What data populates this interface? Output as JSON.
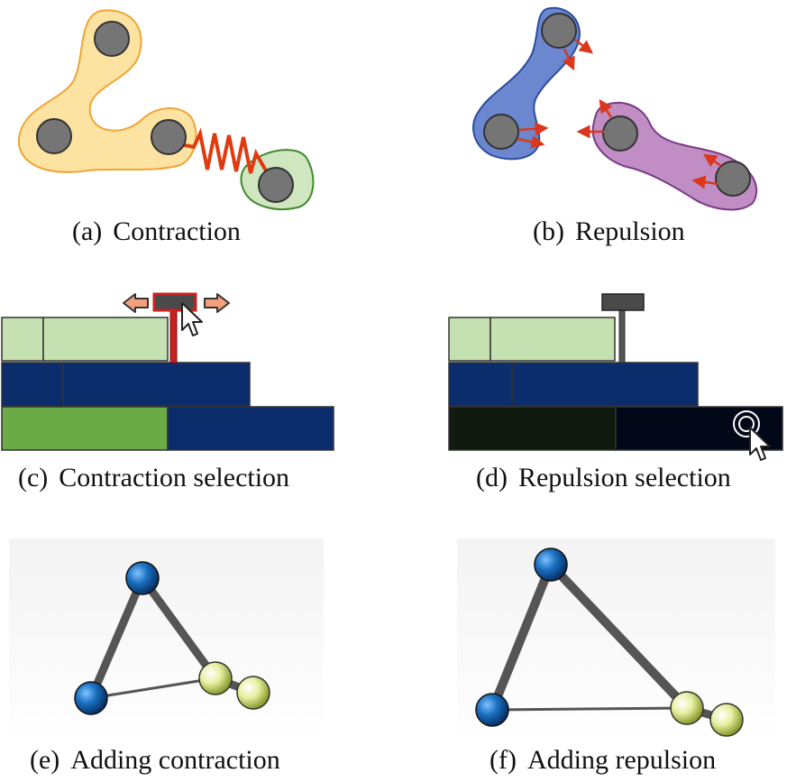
{
  "figure": {
    "panels": [
      {
        "id": "a",
        "label": "(a)",
        "caption": "Contraction"
      },
      {
        "id": "b",
        "label": "(b)",
        "caption": "Repulsion"
      },
      {
        "id": "c",
        "label": "(c)",
        "caption": "Contraction selection"
      },
      {
        "id": "d",
        "label": "(d)",
        "caption": "Repulsion selection"
      },
      {
        "id": "e",
        "label": "(e)",
        "caption": "Adding contraction"
      },
      {
        "id": "f",
        "label": "(f)",
        "caption": "Adding repulsion"
      }
    ]
  },
  "colors": {
    "node": "#757575",
    "cluster_orange": "#fde3a1",
    "cluster_green": "#cfe6c0",
    "cluster_blue": "#6b87cf",
    "cluster_purple": "#c08ec4",
    "spring": "#e03a10",
    "arrow": "#d9381c",
    "bar_light_green": "#c5e0b1",
    "bar_navy": "#0b2d6b",
    "bar_green": "#6aab45",
    "bar_dark_olive": "#101a0e",
    "bar_dark_navy": "#020818",
    "handle": "#4a4a4a",
    "handle_red": "#cc1f1f",
    "graph_blue": "#1a6fc0",
    "graph_yellow": "#e6f0a0",
    "edge": "#555555"
  }
}
